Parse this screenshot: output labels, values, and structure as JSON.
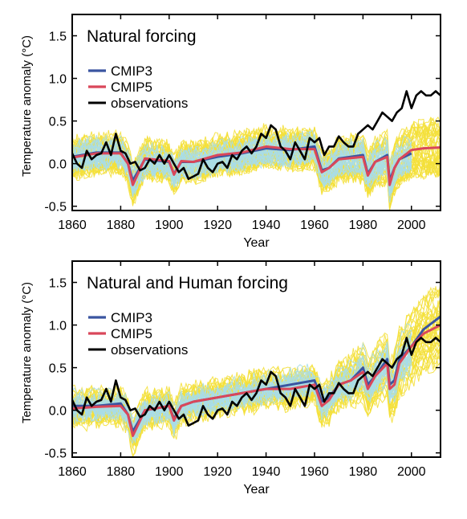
{
  "chart_data": [
    {
      "type": "line",
      "title": "Natural forcing",
      "xlabel": "Year",
      "ylabel": "Temperature anomaly (°C)",
      "xlim": [
        1860,
        2012
      ],
      "ylim": [
        -0.55,
        1.75
      ],
      "xticks": [
        "1860",
        "1880",
        "1900",
        "1920",
        "1940",
        "1960",
        "1980",
        "2000"
      ],
      "yticks": [
        "-0.5",
        "0.0",
        "0.5",
        "1.0",
        "1.5"
      ],
      "legend_position": "upper-left",
      "ensemble_colors": {
        "CMIP5": "#f4e03a",
        "CMIP3": "#a9dde8"
      },
      "series": [
        {
          "name": "CMIP3",
          "color": "#3a55a0",
          "x": [
            1860,
            1870,
            1880,
            1883,
            1885,
            1890,
            1900,
            1902,
            1905,
            1910,
            1920,
            1930,
            1940,
            1950,
            1960,
            1963,
            1966,
            1970,
            1980,
            1982,
            1985,
            1990,
            1991,
            1993,
            1995,
            2000
          ],
          "y": [
            0.08,
            0.13,
            0.13,
            0.0,
            -0.2,
            0.05,
            0.02,
            -0.12,
            0.02,
            0.02,
            0.08,
            0.12,
            0.18,
            0.16,
            0.2,
            -0.08,
            -0.05,
            0.06,
            0.1,
            -0.12,
            0.02,
            0.1,
            -0.2,
            -0.05,
            0.05,
            0.12
          ]
        },
        {
          "name": "CMIP5",
          "color": "#d9475a",
          "x": [
            1860,
            1870,
            1880,
            1883,
            1885,
            1890,
            1900,
            1902,
            1905,
            1910,
            1920,
            1930,
            1940,
            1950,
            1960,
            1963,
            1966,
            1970,
            1980,
            1982,
            1985,
            1990,
            1991,
            1993,
            1995,
            2000,
            2005,
            2012
          ],
          "y": [
            0.07,
            0.12,
            0.12,
            0.0,
            -0.25,
            0.06,
            0.03,
            -0.13,
            0.03,
            0.02,
            0.1,
            0.13,
            0.2,
            0.17,
            0.17,
            -0.1,
            -0.05,
            0.05,
            0.08,
            -0.14,
            0.02,
            0.08,
            -0.25,
            -0.05,
            0.05,
            0.16,
            0.18,
            0.19
          ]
        },
        {
          "name": "observations",
          "color": "#000000",
          "x": [
            1860,
            1862,
            1864,
            1866,
            1868,
            1870,
            1872,
            1874,
            1876,
            1878,
            1880,
            1882,
            1884,
            1886,
            1888,
            1890,
            1892,
            1894,
            1896,
            1898,
            1900,
            1902,
            1904,
            1906,
            1908,
            1910,
            1912,
            1914,
            1916,
            1918,
            1920,
            1922,
            1924,
            1926,
            1928,
            1930,
            1932,
            1934,
            1936,
            1938,
            1940,
            1942,
            1944,
            1946,
            1948,
            1950,
            1952,
            1954,
            1956,
            1958,
            1960,
            1962,
            1964,
            1966,
            1968,
            1970,
            1972,
            1974,
            1976,
            1978,
            1980,
            1982,
            1984,
            1986,
            1988,
            1990,
            1992,
            1994,
            1996,
            1998,
            2000,
            2002,
            2004,
            2006,
            2008,
            2010,
            2012
          ],
          "y": [
            0.12,
            0.0,
            -0.05,
            0.15,
            0.05,
            0.1,
            0.12,
            0.25,
            0.1,
            0.35,
            0.15,
            0.12,
            0.0,
            0.02,
            -0.08,
            -0.05,
            0.05,
            0.0,
            0.1,
            0.0,
            0.1,
            0.0,
            -0.1,
            -0.05,
            -0.18,
            -0.15,
            -0.12,
            0.05,
            -0.05,
            -0.1,
            0.0,
            0.02,
            -0.05,
            0.1,
            0.05,
            0.15,
            0.2,
            0.12,
            0.2,
            0.35,
            0.3,
            0.45,
            0.4,
            0.2,
            0.15,
            0.05,
            0.25,
            0.15,
            0.05,
            0.3,
            0.25,
            0.3,
            0.1,
            0.2,
            0.2,
            0.32,
            0.25,
            0.2,
            0.2,
            0.35,
            0.4,
            0.45,
            0.4,
            0.5,
            0.6,
            0.55,
            0.5,
            0.6,
            0.65,
            0.85,
            0.65,
            0.8,
            0.85,
            0.8,
            0.8,
            0.85,
            0.8
          ]
        }
      ]
    },
    {
      "type": "line",
      "title": "Natural and Human forcing",
      "xlabel": "Year",
      "ylabel": "Temperature anomaly (°C)",
      "xlim": [
        1860,
        2012
      ],
      "ylim": [
        -0.55,
        1.75
      ],
      "xticks": [
        "1860",
        "1880",
        "1900",
        "1920",
        "1940",
        "1960",
        "1980",
        "2000"
      ],
      "yticks": [
        "-0.5",
        "0.0",
        "0.5",
        "1.0",
        "1.5"
      ],
      "legend_position": "upper-left",
      "ensemble_colors": {
        "CMIP5": "#f4e03a",
        "CMIP3": "#a9dde8"
      },
      "series": [
        {
          "name": "CMIP3",
          "color": "#3a55a0",
          "x": [
            1860,
            1870,
            1880,
            1883,
            1885,
            1890,
            1900,
            1902,
            1905,
            1910,
            1920,
            1930,
            1940,
            1950,
            1960,
            1963,
            1966,
            1970,
            1975,
            1980,
            1982,
            1985,
            1990,
            1991,
            1993,
            1995,
            2000,
            2005,
            2012
          ],
          "y": [
            0.05,
            0.05,
            0.08,
            -0.05,
            -0.25,
            0.0,
            0.05,
            -0.1,
            0.05,
            0.1,
            0.15,
            0.2,
            0.25,
            0.3,
            0.35,
            0.1,
            0.15,
            0.3,
            0.35,
            0.5,
            0.3,
            0.4,
            0.6,
            0.3,
            0.35,
            0.6,
            0.75,
            0.95,
            1.1
          ]
        },
        {
          "name": "CMIP5",
          "color": "#d9475a",
          "x": [
            1860,
            1870,
            1880,
            1883,
            1885,
            1890,
            1900,
            1902,
            1905,
            1910,
            1920,
            1930,
            1940,
            1950,
            1960,
            1963,
            1966,
            1970,
            1975,
            1980,
            1982,
            1985,
            1990,
            1991,
            1993,
            1995,
            2000,
            2005,
            2012
          ],
          "y": [
            0.02,
            0.04,
            0.05,
            -0.05,
            -0.3,
            0.0,
            0.05,
            -0.12,
            0.05,
            0.1,
            0.15,
            0.2,
            0.25,
            0.25,
            0.3,
            0.05,
            0.12,
            0.3,
            0.35,
            0.45,
            0.25,
            0.4,
            0.55,
            0.25,
            0.3,
            0.55,
            0.75,
            0.9,
            1.0
          ]
        },
        {
          "name": "observations",
          "color": "#000000",
          "x": [
            1860,
            1862,
            1864,
            1866,
            1868,
            1870,
            1872,
            1874,
            1876,
            1878,
            1880,
            1882,
            1884,
            1886,
            1888,
            1890,
            1892,
            1894,
            1896,
            1898,
            1900,
            1902,
            1904,
            1906,
            1908,
            1910,
            1912,
            1914,
            1916,
            1918,
            1920,
            1922,
            1924,
            1926,
            1928,
            1930,
            1932,
            1934,
            1936,
            1938,
            1940,
            1942,
            1944,
            1946,
            1948,
            1950,
            1952,
            1954,
            1956,
            1958,
            1960,
            1962,
            1964,
            1966,
            1968,
            1970,
            1972,
            1974,
            1976,
            1978,
            1980,
            1982,
            1984,
            1986,
            1988,
            1990,
            1992,
            1994,
            1996,
            1998,
            2000,
            2002,
            2004,
            2006,
            2008,
            2010,
            2012
          ],
          "y": [
            0.12,
            0.0,
            -0.05,
            0.15,
            0.05,
            0.1,
            0.12,
            0.25,
            0.1,
            0.35,
            0.15,
            0.12,
            0.0,
            0.02,
            -0.08,
            -0.05,
            0.05,
            0.0,
            0.1,
            0.0,
            0.1,
            0.0,
            -0.1,
            -0.05,
            -0.18,
            -0.15,
            -0.12,
            0.05,
            -0.05,
            -0.1,
            0.0,
            0.02,
            -0.05,
            0.1,
            0.05,
            0.15,
            0.2,
            0.12,
            0.2,
            0.35,
            0.3,
            0.45,
            0.4,
            0.2,
            0.15,
            0.05,
            0.25,
            0.15,
            0.05,
            0.3,
            0.25,
            0.3,
            0.1,
            0.2,
            0.2,
            0.32,
            0.25,
            0.2,
            0.2,
            0.35,
            0.4,
            0.45,
            0.4,
            0.5,
            0.6,
            0.55,
            0.5,
            0.6,
            0.65,
            0.85,
            0.65,
            0.8,
            0.85,
            0.8,
            0.8,
            0.85,
            0.8
          ]
        }
      ]
    }
  ]
}
